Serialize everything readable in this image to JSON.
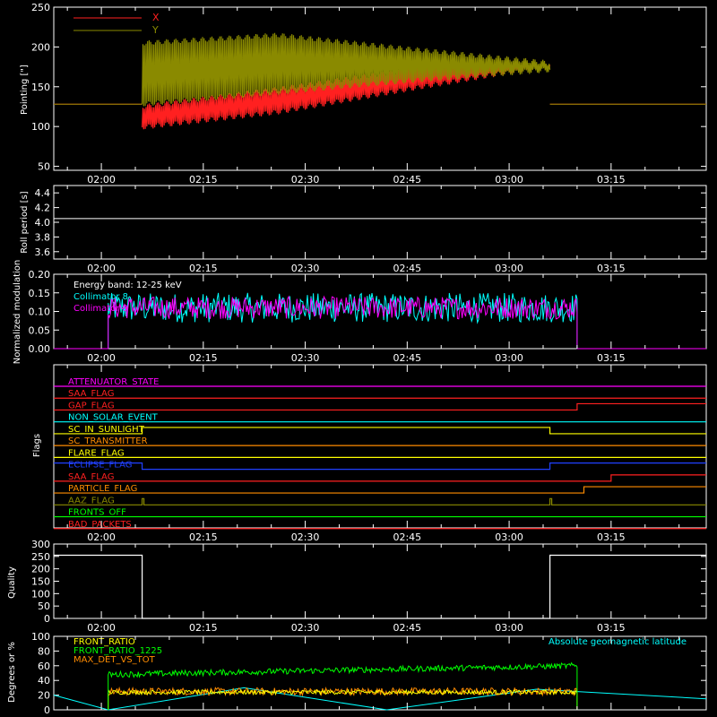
{
  "colors": {
    "axis": "#ffffff",
    "x_series": "#ff2020",
    "y_series": "#8a8a00",
    "col8": "#00ffff",
    "col9": "#ff00ff",
    "front_ratio": "#ffff00",
    "front_ratio_1225": "#00ff00",
    "max_det": "#ff8c00",
    "geomag": "#00ffff"
  },
  "time_ticks": [
    "02:00",
    "02:15",
    "02:30",
    "02:45",
    "03:00",
    "03:15"
  ],
  "chart_data": [
    {
      "id": "pointing",
      "type": "line",
      "ylabel": "Pointing [\"]",
      "ylim": [
        45,
        250
      ],
      "yticks": [
        "50",
        "100",
        "150",
        "200",
        "250"
      ],
      "legend_placement": "top-left",
      "series": [
        {
          "name": "X",
          "color_key": "x_series",
          "baseline": 128,
          "envelope": [
            [
              96,
              128
            ],
            [
              115,
              150
            ],
            [
              145,
              175
            ],
            [
              174,
              178
            ]
          ]
        },
        {
          "name": "Y",
          "color_key": "y_series",
          "baseline": 128,
          "envelope": [
            [
              125,
              208
            ],
            [
              140,
              218
            ],
            [
              155,
              200
            ],
            [
              168,
              183
            ]
          ]
        }
      ],
      "active_from": "02:06",
      "active_to": "03:06"
    },
    {
      "id": "roll",
      "type": "line",
      "ylabel": "Roll period [s]",
      "ylim": [
        3.5,
        4.5
      ],
      "yticks": [
        "3.6",
        "3.8",
        "4.0",
        "4.2",
        "4.4"
      ],
      "series": [
        {
          "values": [
            4.05
          ],
          "color_key": "axis"
        }
      ]
    },
    {
      "id": "modulation",
      "type": "line",
      "ylabel": "Normalized modulation",
      "ylim": [
        0,
        0.2
      ],
      "yticks": [
        "0.00",
        "0.05",
        "0.10",
        "0.15",
        "0.20"
      ],
      "annotation": "Energy band: 12-25 keV",
      "series": [
        {
          "name": "Collimator 8",
          "color_key": "col8",
          "level": 0.11,
          "noise": 0.04
        },
        {
          "name": "Collimator 9",
          "color_key": "col9",
          "level": 0.11,
          "noise": 0.03
        }
      ],
      "active_from": "02:01",
      "active_to": "03:10"
    },
    {
      "id": "flags",
      "type": "line",
      "ylabel": "Flags",
      "series": [
        {
          "name": "ATTENUATOR_STATE",
          "color": "#ff00ff",
          "steps": []
        },
        {
          "name": "SAA_FLAG",
          "color": "#ff2020",
          "steps": []
        },
        {
          "name": "GAP_FLAG",
          "color": "#ff2020",
          "steps": [
            {
              "at": "03:10",
              "up": true
            }
          ]
        },
        {
          "name": "NON_SOLAR_EVENT",
          "color": "#00ffff",
          "steps": []
        },
        {
          "name": "SC_IN_SUNLIGHT",
          "color": "#ffff00",
          "steps": [
            {
              "at": "02:06",
              "up": true
            },
            {
              "at": "03:06",
              "up": false
            }
          ]
        },
        {
          "name": "SC_TRANSMITTER",
          "color": "#ff8c00",
          "steps": []
        },
        {
          "name": "FLARE_FLAG",
          "color": "#ffff00",
          "steps": []
        },
        {
          "name": "ECLIPSE_FLAG",
          "color": "#2040ff",
          "steps": [
            {
              "at": "02:06",
              "up": false
            },
            {
              "at": "03:06",
              "up": true
            }
          ]
        },
        {
          "name": "SAA_FLAG",
          "color": "#ff2020",
          "steps": [
            {
              "at": "03:15",
              "up": true
            }
          ]
        },
        {
          "name": "PARTICLE_FLAG",
          "color": "#ff8c00",
          "steps": [
            {
              "at": "03:11",
              "up": true
            }
          ]
        },
        {
          "name": "AAZ_FLAG",
          "color": "#8a8a00",
          "pulses": [
            "02:06",
            "03:06"
          ]
        },
        {
          "name": "FRONTS_OFF",
          "color": "#00ff00",
          "steps": []
        },
        {
          "name": "BAD_PACKETS",
          "color": "#ff2020",
          "steps": []
        }
      ]
    },
    {
      "id": "quality",
      "type": "line",
      "ylabel": "Quality",
      "ylim": [
        0,
        300
      ],
      "yticks": [
        "0",
        "50",
        "100",
        "150",
        "200",
        "250",
        "300"
      ],
      "segments": [
        {
          "from": "01:53",
          "to": "02:06",
          "value": 255
        },
        {
          "from": "02:06",
          "to": "03:06",
          "value": 0
        },
        {
          "from": "03:06",
          "to": "03:29",
          "value": 255
        }
      ]
    },
    {
      "id": "front_ratio",
      "type": "line",
      "ylabel": "Degrees or %",
      "ylim": [
        0,
        100
      ],
      "yticks": [
        "0",
        "20",
        "40",
        "60",
        "80",
        "100"
      ],
      "series": [
        {
          "name": "FRONT_RATIO",
          "color_key": "front_ratio",
          "level": 24,
          "noise": 3
        },
        {
          "name": "FRONT_RATIO_1225",
          "color_key": "front_ratio_1225",
          "start": 48,
          "end": 60,
          "noise": 4
        },
        {
          "name": "MAX_DET_VS_TOT",
          "color_key": "max_det",
          "level": 25,
          "noise": 5
        },
        {
          "name": "Absolute geomagnetic latitude",
          "color_key": "geomag",
          "points": [
            [
              "01:53",
              20
            ],
            [
              "02:01",
              0
            ],
            [
              "02:21",
              30
            ],
            [
              "02:42",
              0
            ],
            [
              "03:04",
              28
            ],
            [
              "03:29",
              15
            ]
          ]
        }
      ],
      "active_from": "02:01",
      "active_to": "03:10"
    }
  ]
}
